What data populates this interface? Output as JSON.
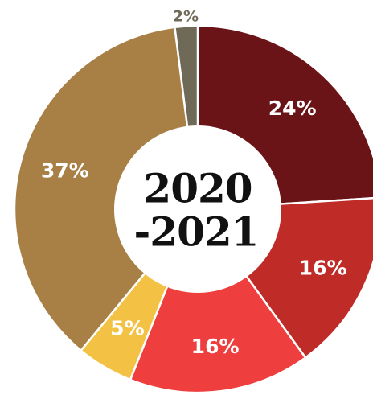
{
  "chart_data": {
    "type": "pie",
    "donut": true,
    "center_title_lines": [
      "2020",
      "-2021"
    ],
    "slices": [
      {
        "value": 24,
        "label": "24%",
        "color": "#6b1418"
      },
      {
        "value": 16,
        "label": "16%",
        "color": "#bf2b27"
      },
      {
        "value": 16,
        "label": "16%",
        "color": "#ee3e3d"
      },
      {
        "value": 5,
        "label": "5%",
        "color": "#f3c143"
      },
      {
        "value": 37,
        "label": "37%",
        "color": "#a87f45"
      },
      {
        "value": 2,
        "label": "2%",
        "color": "#6f6a58"
      }
    ]
  }
}
